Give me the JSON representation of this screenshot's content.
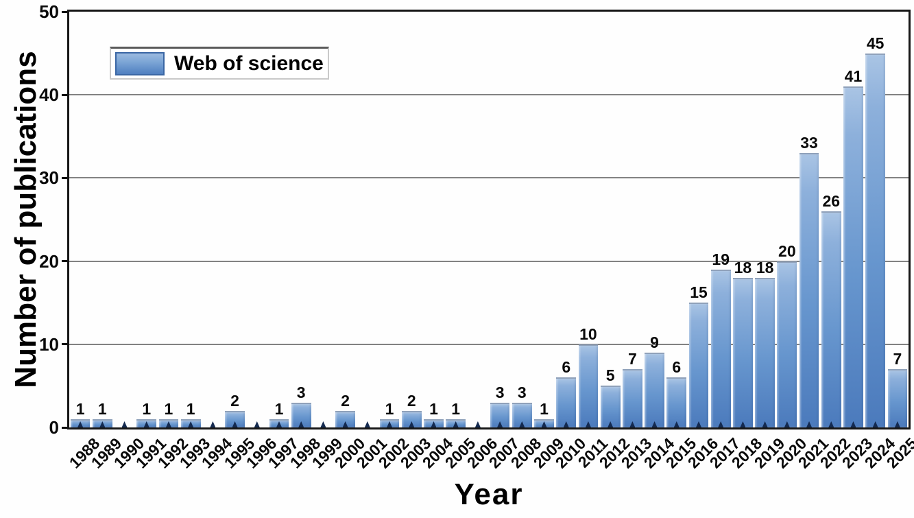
{
  "figure": {
    "legend": {
      "label": "Web of science",
      "position": "top-left"
    },
    "colors": {
      "bar_gradient_top": "#a9c4e4",
      "bar_gradient_mid": "#6796ce",
      "bar_gradient_bottom": "#4b7abc",
      "bar_top_edge": "#8fa1ba",
      "legend_swatch_border": "#3a66a4",
      "gridline": "#828282",
      "frame": "#161616",
      "axis_tick": "#142a50",
      "text": "#000000",
      "background": "#fefefe"
    }
  },
  "chart_data": {
    "type": "bar",
    "title": "",
    "xlabel": "Year",
    "ylabel": "Number of publications",
    "series_name": "Web of science",
    "categories": [
      "1988",
      "1989",
      "1990",
      "1991",
      "1992",
      "1993",
      "1994",
      "1995",
      "1996",
      "1997",
      "1998",
      "1999",
      "2000",
      "2001",
      "2002",
      "2003",
      "2004",
      "2005",
      "2006",
      "2007",
      "2008",
      "2009",
      "2010",
      "2011",
      "2012",
      "2013",
      "2014",
      "2015",
      "2016",
      "2017",
      "2018",
      "2019",
      "2020",
      "2021",
      "2022",
      "2023",
      "2024",
      "2025"
    ],
    "values": [
      1,
      1,
      0,
      1,
      1,
      1,
      0,
      2,
      0,
      1,
      3,
      0,
      2,
      0,
      1,
      2,
      1,
      1,
      0,
      3,
      3,
      1,
      6,
      10,
      5,
      7,
      9,
      6,
      15,
      19,
      18,
      18,
      20,
      33,
      26,
      41,
      45,
      7
    ],
    "bar_labels_shown": true,
    "ylim": [
      0,
      50
    ],
    "yticks": [
      0,
      10,
      20,
      30,
      40,
      50
    ],
    "grid": "horizontal",
    "legend_position": "top-left"
  }
}
